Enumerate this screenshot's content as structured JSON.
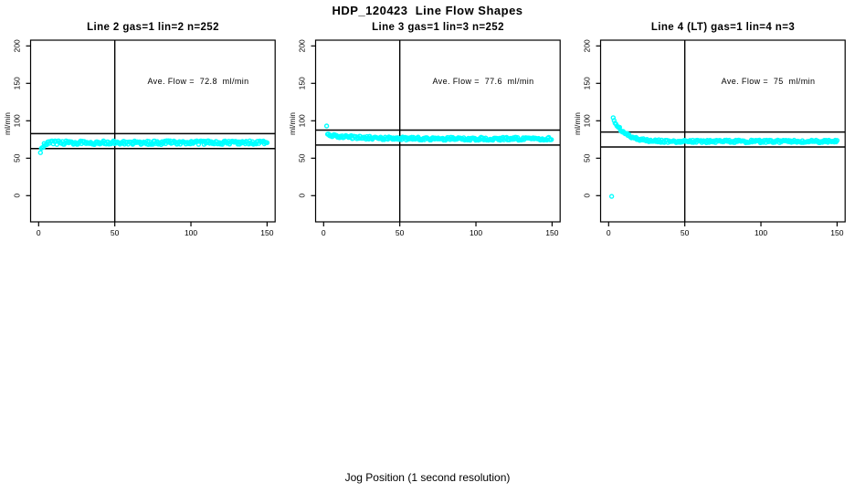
{
  "figure": {
    "title": "HDP_120423  Line Flow Shapes",
    "xlabel": "Jog Position (1 second resolution)",
    "point_color": "#00FFFF",
    "axis_color": "#000000"
  },
  "chart_data": [
    {
      "type": "scatter",
      "title": "Line 2 gas=1 lin=2 n=252",
      "annotation": "Ave. Flow =  72.8  ml/min",
      "ave_flow_ml_min": 72.8,
      "ylabel": "ml/min",
      "xticks": [
        0,
        50,
        100,
        150
      ],
      "yticks": [
        0,
        50,
        100,
        150,
        200
      ],
      "xlim": [
        0,
        150
      ],
      "ref_hlines": [
        82.8,
        62.8
      ],
      "ref_vline": 50,
      "marker": "open-circle",
      "series": [
        {
          "name": "flow",
          "color": "#00FFFF",
          "profile": {
            "x0": 1.2,
            "x1": 150,
            "dx": 0.6,
            "start": 56,
            "end": 70.8,
            "tau": 1.4,
            "jitter": 5,
            "seed": 7,
            "outliers": []
          }
        }
      ]
    },
    {
      "type": "scatter",
      "title": "Line 3 gas=1 lin=3 n=252",
      "annotation": "Ave. Flow =  77.6  ml/min",
      "ave_flow_ml_min": 77.6,
      "ylabel": "ml/min",
      "xticks": [
        0,
        50,
        100,
        150
      ],
      "yticks": [
        0,
        50,
        100,
        150,
        200
      ],
      "xlim": [
        0,
        150
      ],
      "ref_hlines": [
        87.6,
        67.6
      ],
      "ref_vline": 50,
      "marker": "open-circle",
      "series": [
        {
          "name": "flow",
          "color": "#00FFFF",
          "profile": {
            "x0": 2.6,
            "x1": 150,
            "dx": 0.6,
            "start": 80.5,
            "end": 76.0,
            "tau": 22,
            "jitter": 4,
            "seed": 13,
            "outliers": [
              [
                2.0,
                93
              ]
            ]
          }
        }
      ]
    },
    {
      "type": "scatter",
      "title": "Line 4 (LT) gas=1 lin=4 n=3",
      "annotation": "Ave. Flow =  75  ml/min",
      "ave_flow_ml_min": 75,
      "ylabel": "ml/min",
      "xticks": [
        0,
        50,
        100,
        150
      ],
      "yticks": [
        0,
        50,
        100,
        150,
        200
      ],
      "xlim": [
        0,
        150
      ],
      "ref_hlines": [
        85,
        65
      ],
      "ref_vline": 50,
      "marker": "open-circle",
      "series": [
        {
          "name": "flow",
          "color": "#00FFFF",
          "profile": {
            "x0": 3.0,
            "x1": 150,
            "dx": 0.6,
            "start": 103,
            "end": 72.4,
            "tau": 7.5,
            "jitter": 3.5,
            "seed": 21,
            "outliers": [
              [
                2.0,
                -1
              ]
            ]
          }
        }
      ]
    }
  ]
}
